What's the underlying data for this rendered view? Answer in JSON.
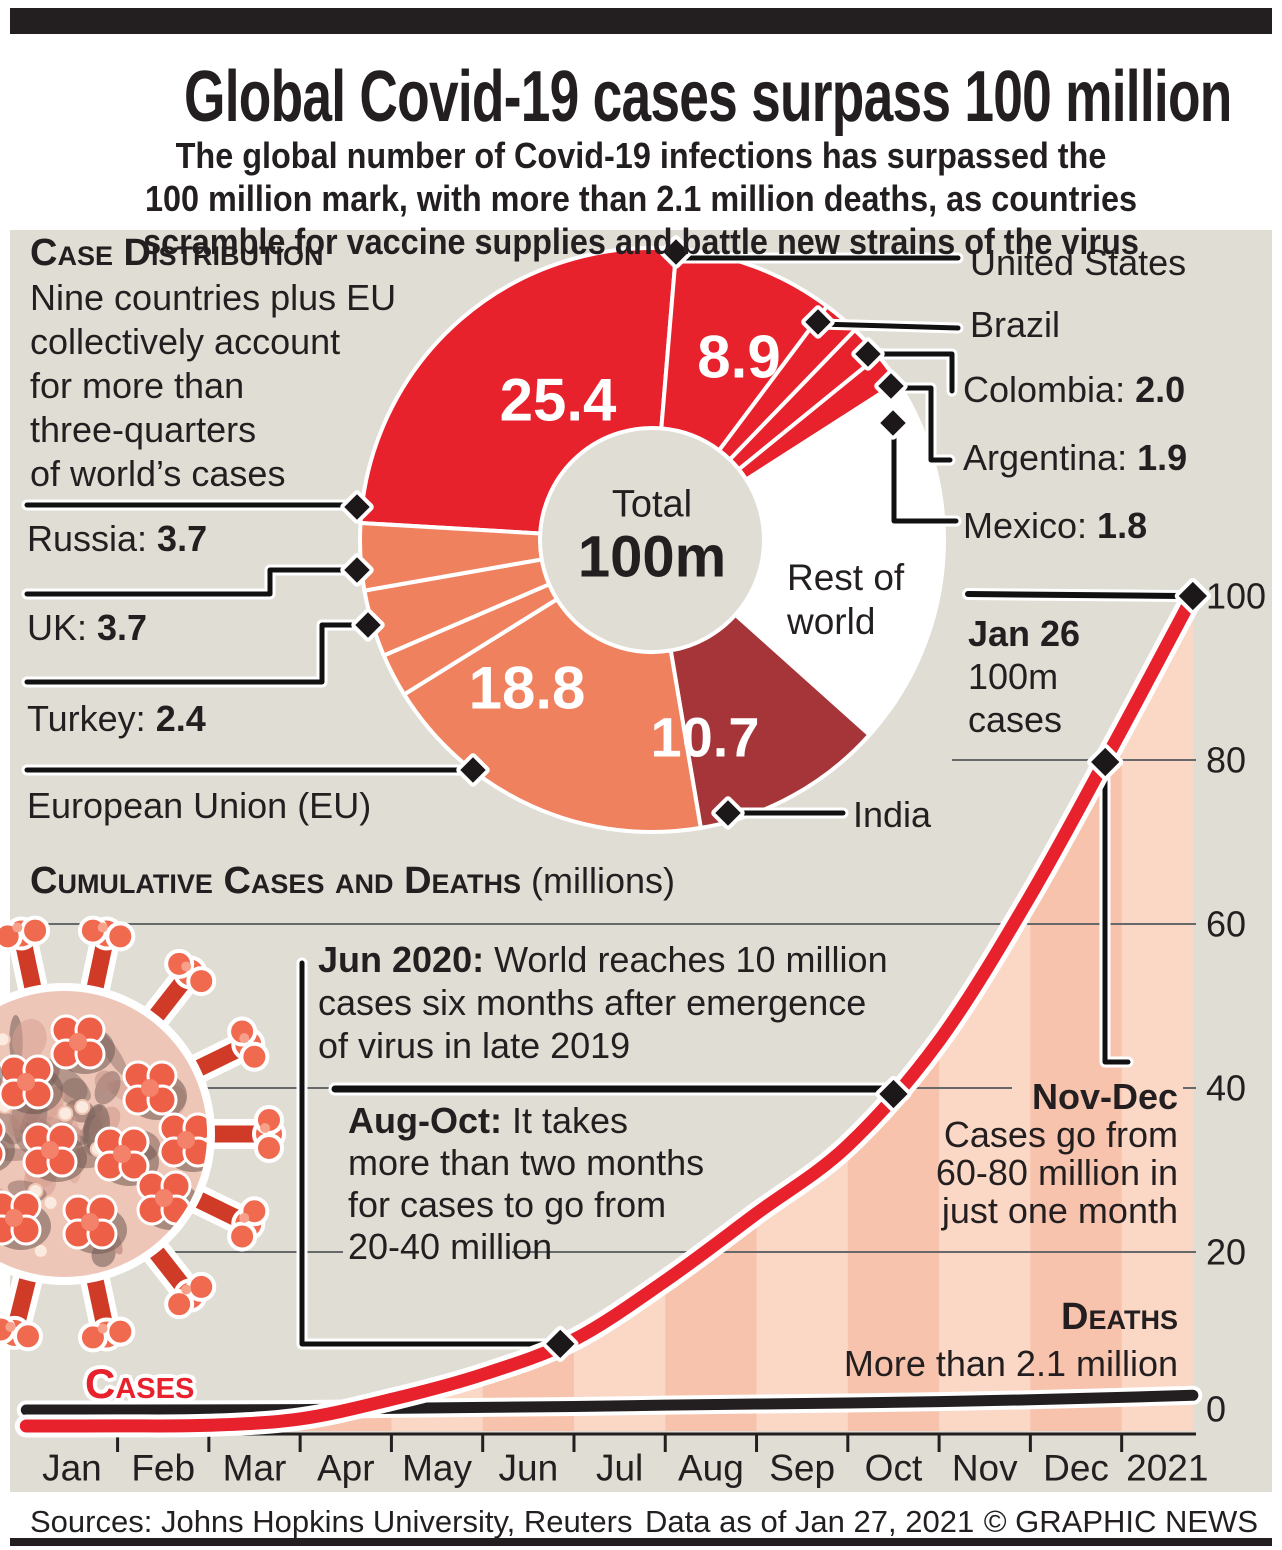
{
  "colors": {
    "bar": "#231f20",
    "panel_bg": "#dfddd4",
    "red": "#e8222d",
    "salmon": "#f0815f",
    "maroon": "#a63539",
    "area_light": "#fbd7c6",
    "area_dark": "#f7c3ac",
    "grid": "#66686a",
    "deaths": "#231f20"
  },
  "header": {
    "title": "Global Covid-19 cases surpass 100 million",
    "subtitle_lines": [
      "The global number of Covid-19 infections has surpassed the",
      "100 million mark, with more than 2.1 million deaths, as countries",
      "scramble for vaccine supplies and battle new strains of the virus"
    ]
  },
  "distribution": {
    "heading": "Case Distribution",
    "intro_lines": [
      "Nine countries plus EU",
      "collectively account",
      "for more than",
      "three-quarters",
      "of world’s cases"
    ],
    "center_label": "Total",
    "center_value": "100m",
    "rest_lines": [
      "Rest of",
      "world"
    ]
  },
  "timeline": {
    "heading": "Cumulative Cases and Deaths",
    "heading_suffix": " (millions)",
    "jun_bold": "Jun 2020:",
    "jun_lines": [
      " World reaches 10 million",
      "cases six months after emergence",
      "of virus in late 2019"
    ],
    "augoct_bold": "Aug-Oct:",
    "augoct_lines": [
      " It takes",
      "more than two months",
      "for cases to go from",
      "20-40 million"
    ],
    "jan26_bold": "Jan 26",
    "jan26_lines": [
      "100m",
      "cases"
    ],
    "novdec_bold": "Nov-Dec",
    "novdec_lines": [
      "Cases go from",
      "60-80 million in",
      "just one month"
    ],
    "deaths_label": "Deaths",
    "deaths_sub": "More than 2.1 million",
    "cases_label": "Cases"
  },
  "footer": {
    "sources": "Sources: Johns Hopkins University, Reuters",
    "data_note": "Data as of Jan 27, 2021",
    "credit": "© GRAPHIC NEWS"
  },
  "chart_data": [
    {
      "type": "pie",
      "title": "Case Distribution",
      "units": "percent of world cases (millions of cases out of 100m total)",
      "total_label": "Total",
      "total_value": "100m",
      "start_angle_deg": -86.66,
      "slices": [
        {
          "name": "United States",
          "pct": 25.4,
          "color": "#e8222d",
          "inner_label": "25.4",
          "callout": "United States",
          "callout_value": null
        },
        {
          "name": "Brazil",
          "pct": 8.9,
          "color": "#e8222d",
          "inner_label": "8.9",
          "callout": "Brazil",
          "callout_value": null
        },
        {
          "name": "Colombia",
          "pct": 2.0,
          "color": "#e8222d",
          "inner_label": null,
          "callout": "Colombia: ",
          "callout_value": "2.0"
        },
        {
          "name": "Argentina",
          "pct": 1.9,
          "color": "#e8222d",
          "inner_label": null,
          "callout": "Argentina: ",
          "callout_value": "1.9"
        },
        {
          "name": "Mexico",
          "pct": 1.8,
          "color": "#e8222d",
          "inner_label": null,
          "callout": "Mexico: ",
          "callout_value": "1.8"
        },
        {
          "name": "Rest of world",
          "pct": 20.7,
          "color": "#ffffff",
          "inner_label": null,
          "callout": null,
          "callout_value": null
        },
        {
          "name": "India",
          "pct": 10.7,
          "color": "#a63539",
          "inner_label": "10.7",
          "callout": "India",
          "callout_value": null
        },
        {
          "name": "European Union (EU)",
          "pct": 18.8,
          "color": "#f0815f",
          "inner_label": "18.8",
          "callout": "European Union (EU)",
          "callout_value": null
        },
        {
          "name": "Turkey",
          "pct": 2.4,
          "color": "#f0815f",
          "inner_label": null,
          "callout": "Turkey: ",
          "callout_value": "2.4"
        },
        {
          "name": "UK",
          "pct": 3.7,
          "color": "#f0815f",
          "inner_label": null,
          "callout": "UK: ",
          "callout_value": "3.7"
        },
        {
          "name": "Russia",
          "pct": 3.7,
          "color": "#f0815f",
          "inner_label": null,
          "callout": "Russia: ",
          "callout_value": "3.7"
        }
      ]
    },
    {
      "type": "line",
      "title": "Cumulative Cases and Deaths (millions)",
      "x_labels": [
        "Jan",
        "Feb",
        "Mar",
        "Apr",
        "May",
        "Jun",
        "Jul",
        "Aug",
        "Sep",
        "Oct",
        "Nov",
        "Dec",
        "2021"
      ],
      "y_ticks": [
        0,
        20,
        40,
        60,
        80,
        100
      ],
      "ylim": [
        0,
        100
      ],
      "grid": true,
      "series": [
        {
          "name": "Cases",
          "color": "#e8222d",
          "points": [
            [
              0,
              0
            ],
            [
              1,
              0.01
            ],
            [
              2,
              0.09
            ],
            [
              3,
              0.86
            ],
            [
              4,
              3.2
            ],
            [
              5,
              6.2
            ],
            [
              6,
              10.4
            ],
            [
              7,
              17.5
            ],
            [
              8,
              25.6
            ],
            [
              9,
              33.8
            ],
            [
              10,
              46.4
            ],
            [
              11,
              63.9
            ],
            [
              12,
              83.9
            ],
            [
              12.78,
              100
            ]
          ]
        },
        {
          "name": "Deaths",
          "color": "#231f20",
          "points": [
            [
              0,
              0
            ],
            [
              1,
              0
            ],
            [
              2,
              0.01
            ],
            [
              3,
              0.06
            ],
            [
              4,
              0.23
            ],
            [
              5,
              0.37
            ],
            [
              6,
              0.5
            ],
            [
              7,
              0.69
            ],
            [
              8,
              0.85
            ],
            [
              9,
              1.0
            ],
            [
              10,
              1.2
            ],
            [
              11,
              1.46
            ],
            [
              12,
              1.81
            ],
            [
              12.78,
              2.1
            ]
          ]
        }
      ],
      "markers": [
        [
          5.85,
          9.9
        ],
        [
          9.5,
          40
        ],
        [
          11.82,
          80
        ],
        [
          12.78,
          100
        ]
      ]
    }
  ]
}
